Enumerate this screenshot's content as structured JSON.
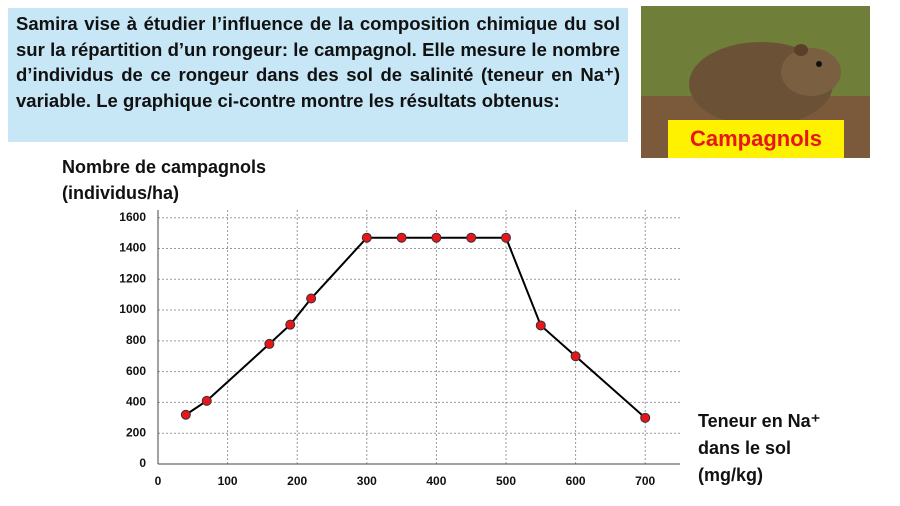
{
  "intro": "Samira vise à étudier l’influence de la composition chimique du sol sur la répartition d’un rongeur: le campagnol. Elle mesure le nombre d’individus de ce rongeur dans des sol de salinité (teneur en Na⁺) variable. Le graphique ci-contre montre les résultats obtenus:",
  "photo_label": "Campagnols",
  "chart_data": {
    "type": "line",
    "ylabel": [
      "Nombre de campagnols",
      "(individus/ha)"
    ],
    "xlabel": [
      "Teneur en Na⁺",
      "dans le sol",
      "(mg/kg)"
    ],
    "x": [
      40,
      70,
      160,
      190,
      220,
      300,
      350,
      400,
      450,
      500,
      550,
      600,
      700
    ],
    "values": [
      320,
      410,
      780,
      905,
      1075,
      1470,
      1470,
      1470,
      1470,
      1470,
      900,
      700,
      300
    ],
    "color": "#000000",
    "marker_color": "#e8151b",
    "xlim": [
      0,
      750
    ],
    "ylim": [
      0,
      1650
    ],
    "xticks": [
      0,
      100,
      200,
      300,
      400,
      500,
      600,
      700
    ],
    "yticks": [
      0,
      200,
      400,
      600,
      800,
      1000,
      1200,
      1400,
      1600
    ],
    "grid": true
  }
}
